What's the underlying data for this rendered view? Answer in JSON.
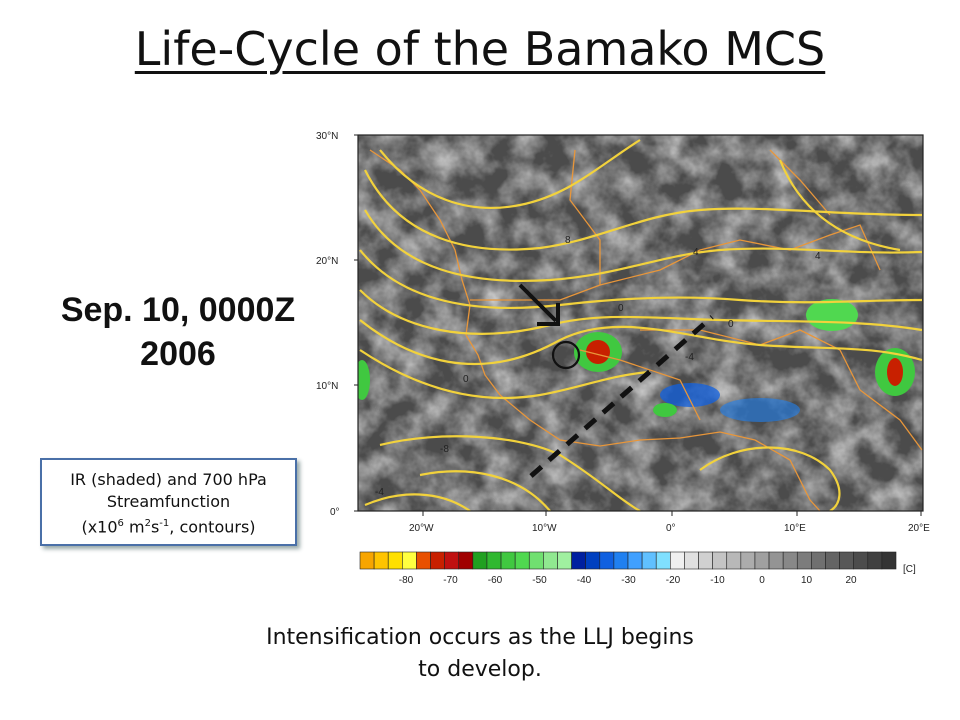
{
  "title": "Life-Cycle of the Bamako MCS",
  "date": {
    "line1": "Sep. 10, 0000Z",
    "line2": "2006"
  },
  "legend": {
    "line1": "IR (shaded) and 700 hPa",
    "line2": "Streamfunction",
    "line3_prefix": "(x10",
    "line3_exp1": "6",
    "line3_mid": " m",
    "line3_exp2": "2",
    "line3_mid2": "s",
    "line3_exp3": "-1",
    "line3_suffix": ", contours)"
  },
  "caption": {
    "line1": "Intensification occurs as the LLJ begins",
    "line2": "to develop."
  },
  "map": {
    "lat_labels": [
      "30°N",
      "20°N",
      "10°N",
      "0°"
    ],
    "lon_labels": [
      "20°W",
      "10°W",
      "0°",
      "10°E",
      "20°E"
    ],
    "contour_labels": [
      "8",
      "4",
      "4",
      "0",
      "0",
      "0",
      "-4",
      "-4",
      "-8"
    ],
    "colors": {
      "contour": "#f2d23c",
      "coast": "#e8963a",
      "background": "#4b4b4b"
    }
  },
  "colorbar": {
    "tick_labels": [
      "-80",
      "-70",
      "-60",
      "-50",
      "-40",
      "-30",
      "-20",
      "-10",
      "0",
      "10",
      "20"
    ],
    "unit": "[C]",
    "colors": [
      "#f7a500",
      "#ffc400",
      "#ffe000",
      "#ffff40",
      "#e85000",
      "#c82000",
      "#c01010",
      "#a00000",
      "#20a020",
      "#30b830",
      "#40c840",
      "#50d850",
      "#70e070",
      "#90e890",
      "#a0f0a0",
      "#0020a0",
      "#0040c0",
      "#1060e0",
      "#2080f0",
      "#40a0ff",
      "#60c0ff",
      "#80e0ff",
      "#f0f0f0",
      "#e0e0e0",
      "#d0d0d0",
      "#c4c4c4",
      "#b8b8b8",
      "#acacac",
      "#a0a0a0",
      "#949494",
      "#888888",
      "#7c7c7c",
      "#707070",
      "#646464",
      "#585858",
      "#4c4c4c",
      "#404040",
      "#343434"
    ]
  }
}
